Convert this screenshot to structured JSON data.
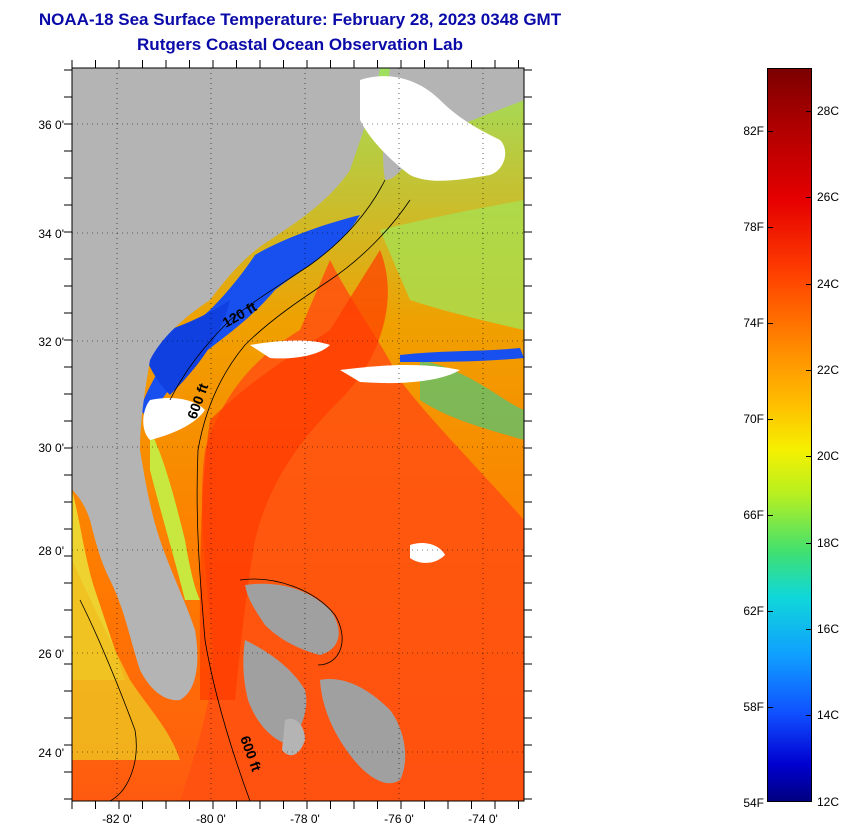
{
  "header": {
    "title": "NOAA-18 Sea Surface Temperature:  February 28, 2023 0348 GMT",
    "subtitle": "Rutgers Coastal Ocean Observation Lab"
  },
  "map": {
    "lat_labels": [
      "36 0'",
      "34 0'",
      "32 0'",
      "30 0'",
      "28 0'",
      "26 0'",
      "24 0'"
    ],
    "lon_labels": [
      "-82 0'",
      "-80 0'",
      "-78 0'",
      "-76 0'",
      "-74 0'"
    ],
    "contour_labels": [
      "120 ft",
      "600 ft",
      "600 ft"
    ],
    "colors": {
      "land": "#b4b4b4",
      "cloud": "#ffffff",
      "frame": "#000000"
    }
  },
  "colorbar": {
    "fahrenheit": [
      "82F",
      "78F",
      "74F",
      "70F",
      "66F",
      "62F",
      "58F",
      "54F"
    ],
    "celsius": [
      "28C",
      "26C",
      "24C",
      "22C",
      "20C",
      "18C",
      "16C",
      "14C",
      "12C"
    ]
  }
}
